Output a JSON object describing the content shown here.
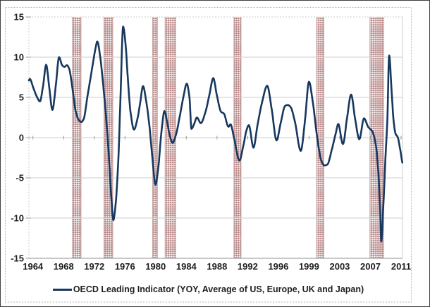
{
  "chart_data": {
    "type": "line",
    "title": "",
    "legend": [
      "OECD Leading Indicator (YOY, Average of US, Europe, UK and Japan)"
    ],
    "y_axis": {
      "min": -15,
      "max": 15,
      "ticks": [
        15,
        10,
        5,
        0,
        -5,
        -10,
        -15
      ]
    },
    "x_axis": {
      "labels": [
        "1964",
        "1968",
        "1972",
        "1976",
        "1980",
        "1984",
        "1988",
        "1992",
        "1996",
        "1999",
        "2003",
        "2007",
        "2011"
      ],
      "year_min": 1963.49,
      "year_max": 2011.33
    },
    "grid": "on",
    "legend_position": "bottom",
    "recession_bands": [
      [
        1969.08,
        1970.16
      ],
      [
        1973.11,
        1974.23
      ],
      [
        1979.34,
        1979.94
      ],
      [
        1980.93,
        1982.26
      ],
      [
        1989.75,
        1990.65
      ],
      [
        2000.34,
        2001.24
      ],
      [
        2007.16,
        2008.9
      ]
    ],
    "series": [
      {
        "name": "OECD Leading Indicator (YOY, Average of US, Europe, UK and Japan)",
        "points": [
          [
            1963.49,
            7.1
          ],
          [
            1963.6,
            7.3
          ],
          [
            1964.05,
            6.2
          ],
          [
            1964.5,
            5.1
          ],
          [
            1964.9,
            4.5
          ],
          [
            1965.3,
            6.4
          ],
          [
            1965.7,
            9.05
          ],
          [
            1966.1,
            6.2
          ],
          [
            1966.5,
            3.45
          ],
          [
            1966.95,
            6.6
          ],
          [
            1967.35,
            10
          ],
          [
            1967.75,
            9
          ],
          [
            1968.05,
            8.8
          ],
          [
            1968.35,
            9
          ],
          [
            1968.65,
            8.55
          ],
          [
            1969,
            6.6
          ],
          [
            1969.5,
            3.2
          ],
          [
            1969.9,
            2.15
          ],
          [
            1970.2,
            1.95
          ],
          [
            1970.5,
            2.3
          ],
          [
            1971,
            5.2
          ],
          [
            1971.6,
            8.7
          ],
          [
            1972,
            11
          ],
          [
            1972.25,
            11.95
          ],
          [
            1972.6,
            10.2
          ],
          [
            1973,
            6.6
          ],
          [
            1973.35,
            2.8
          ],
          [
            1973.7,
            -1.8
          ],
          [
            1974.05,
            -7.5
          ],
          [
            1974.3,
            -10.25
          ],
          [
            1974.6,
            -8.2
          ],
          [
            1974.95,
            -2.5
          ],
          [
            1975.25,
            6
          ],
          [
            1975.55,
            13.8
          ],
          [
            1975.85,
            11.8
          ],
          [
            1976.15,
            7.5
          ],
          [
            1976.5,
            3.2
          ],
          [
            1976.95,
            1
          ],
          [
            1977.4,
            2.4
          ],
          [
            1977.75,
            4.4
          ],
          [
            1978.1,
            6.4
          ],
          [
            1978.5,
            4.6
          ],
          [
            1978.95,
            1.2
          ],
          [
            1979.3,
            -2.5
          ],
          [
            1979.7,
            -5.85
          ],
          [
            1980.05,
            -3.8
          ],
          [
            1980.45,
            0.6
          ],
          [
            1980.85,
            3.3
          ],
          [
            1981.2,
            1.9
          ],
          [
            1981.55,
            0.2
          ],
          [
            1981.9,
            -0.65
          ],
          [
            1982.3,
            0.3
          ],
          [
            1982.8,
            2.6
          ],
          [
            1983.3,
            5.2
          ],
          [
            1983.7,
            6.7
          ],
          [
            1984.05,
            5
          ],
          [
            1984.3,
            1.1
          ],
          [
            1984.65,
            1.7
          ],
          [
            1985,
            2.5
          ],
          [
            1985.5,
            1.8
          ],
          [
            1986.1,
            3.2
          ],
          [
            1986.6,
            5.3
          ],
          [
            1987.1,
            7.4
          ],
          [
            1987.55,
            5.3
          ],
          [
            1988.1,
            3.2
          ],
          [
            1988.45,
            3
          ],
          [
            1989.05,
            1.35
          ],
          [
            1989.3,
            1.65
          ],
          [
            1989.75,
            0
          ],
          [
            1990.45,
            -2.85
          ],
          [
            1990.95,
            -1
          ],
          [
            1991.35,
            0.9
          ],
          [
            1991.65,
            1.55
          ],
          [
            1992.25,
            -1.25
          ],
          [
            1992.75,
            1.5
          ],
          [
            1993.35,
            4.4
          ],
          [
            1994,
            6.45
          ],
          [
            1994.6,
            3.4
          ],
          [
            1995.2,
            -0.35
          ],
          [
            1995.75,
            1.9
          ],
          [
            1996.3,
            3.95
          ],
          [
            1996.65,
            4.05
          ],
          [
            1997,
            3.8
          ],
          [
            1997.55,
            2
          ],
          [
            1998.3,
            -1.65
          ],
          [
            1998.85,
            2.2
          ],
          [
            1999.35,
            6.95
          ],
          [
            1999.85,
            4.4
          ],
          [
            2000.35,
            0.4
          ],
          [
            2000.95,
            -2.9
          ],
          [
            2001.3,
            -3.45
          ],
          [
            2001.7,
            -3.35
          ],
          [
            2002.3,
            -1.4
          ],
          [
            2002.8,
            0.6
          ],
          [
            2003.1,
            1.7
          ],
          [
            2003.7,
            -0.8
          ],
          [
            2004.25,
            2.6
          ],
          [
            2004.75,
            5.35
          ],
          [
            2005.25,
            2.4
          ],
          [
            2005.8,
            -0.2
          ],
          [
            2006.4,
            2.4
          ],
          [
            2006.95,
            1.3
          ],
          [
            2007.45,
            0.8
          ],
          [
            2007.9,
            -0.8
          ],
          [
            2008.2,
            -3.8
          ],
          [
            2008.45,
            -8.5
          ],
          [
            2008.62,
            -12.9
          ],
          [
            2008.85,
            -9
          ],
          [
            2009.15,
            -2.5
          ],
          [
            2009.4,
            2.5
          ],
          [
            2009.62,
            10.2
          ],
          [
            2009.95,
            5.5
          ],
          [
            2010.2,
            2
          ],
          [
            2010.45,
            0.45
          ],
          [
            2010.7,
            0.1
          ],
          [
            2011.0,
            -1.3
          ],
          [
            2011.3,
            -3.1
          ]
        ]
      }
    ],
    "colors": {
      "line": "#17375e",
      "band_dot": "#b98a8a",
      "band_edge": "#bb9090",
      "grid": "#cdcdcd",
      "axis": "#a6a6a6",
      "tick": "#9a9a9a",
      "text": "#1f1f1f",
      "outer_border_dash": "#b5b5b5",
      "frame_border": "#3f3f3f"
    }
  }
}
